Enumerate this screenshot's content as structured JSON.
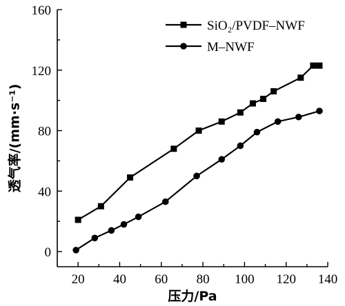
{
  "chart_data": {
    "type": "line",
    "title": "",
    "xlabel": "压力/Pa",
    "ylabel": "透气率/(mm·s⁻¹)",
    "xlim": [
      10,
      140
    ],
    "ylim": [
      -10,
      160
    ],
    "xticks": [
      20,
      40,
      60,
      80,
      100,
      120,
      140
    ],
    "yticks": [
      0,
      40,
      80,
      120,
      160
    ],
    "legend_position": "top-right",
    "grid": false,
    "series": [
      {
        "name": "SiO₂/PVDF–NWF",
        "marker": "square",
        "x": [
          20,
          31,
          45,
          66,
          78,
          89,
          98,
          104,
          109,
          114,
          127,
          133,
          136
        ],
        "y": [
          21,
          30,
          49,
          68,
          80,
          86,
          92,
          98,
          101,
          106,
          115,
          123,
          123
        ]
      },
      {
        "name": "M–NWF",
        "marker": "circle",
        "x": [
          19,
          28,
          36,
          42,
          49,
          62,
          77,
          89,
          98,
          106,
          116,
          126,
          136
        ],
        "y": [
          1,
          9,
          14,
          18,
          23,
          33,
          50,
          61,
          70,
          79,
          86,
          89,
          93
        ]
      }
    ]
  }
}
